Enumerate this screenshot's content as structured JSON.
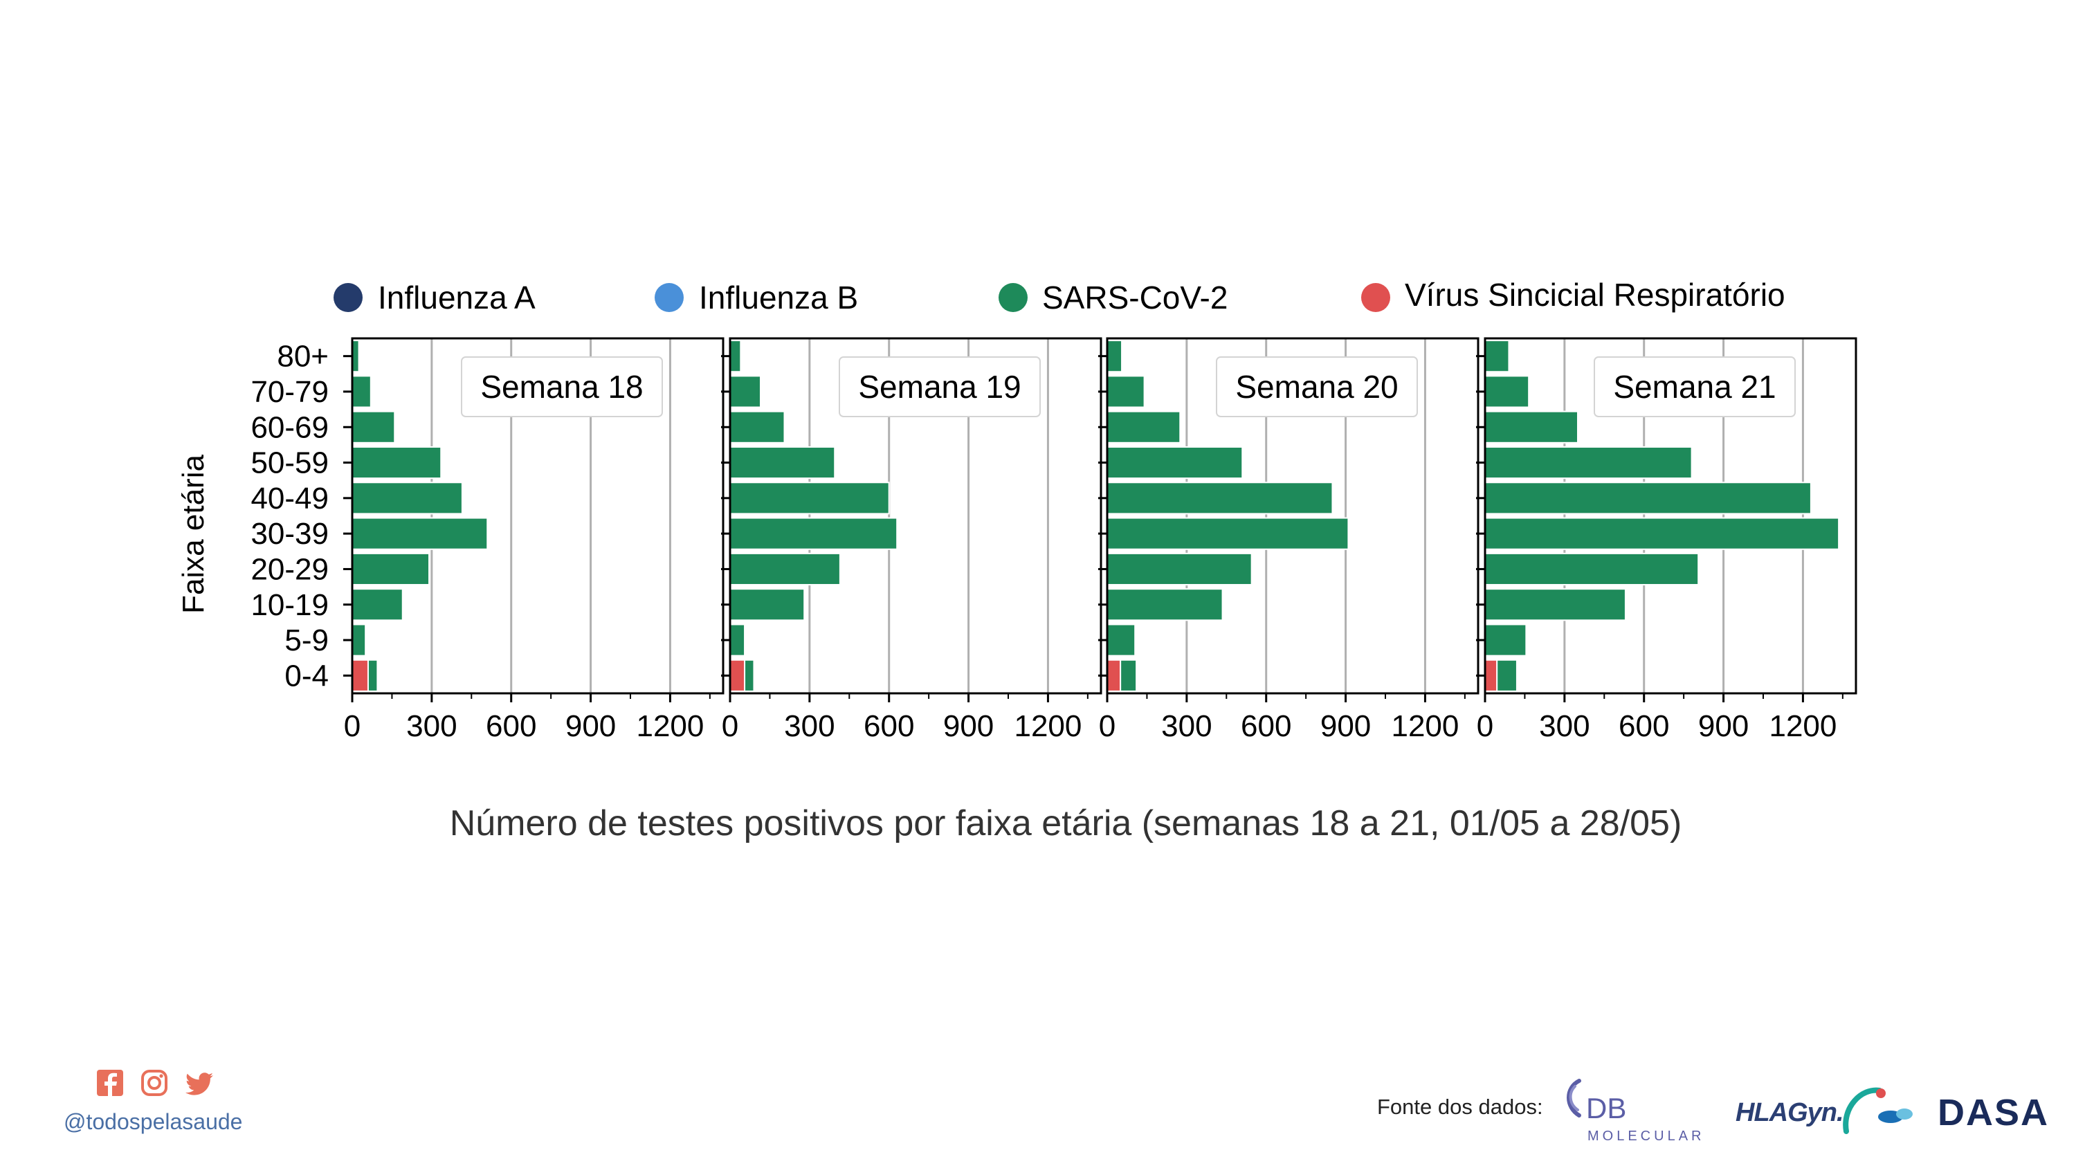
{
  "colors": {
    "influenza_a": "#243b6b",
    "influenza_b": "#4a90d9",
    "sars_cov_2": "#1e8a5a",
    "vsr": "#e05050",
    "social": "#e8705a",
    "handle": "#4a6fa5",
    "db_logo": "#5b5ea6",
    "dasa_logo": "#1a2b5a"
  },
  "legend": {
    "items": [
      {
        "label": "Influenza A",
        "color": "#243b6b"
      },
      {
        "label": "Influenza B",
        "color": "#4a90d9"
      },
      {
        "label": "SARS-CoV-2",
        "color": "#1e8a5a"
      },
      {
        "label": "Vírus Sincicial Respiratório",
        "color": "#e05050"
      }
    ]
  },
  "chart_data": {
    "type": "bar",
    "orientation": "horizontal",
    "stacked": true,
    "ylabel": "Faixa etária",
    "categories": [
      "0-4",
      "5-9",
      "10-19",
      "20-29",
      "30-39",
      "40-49",
      "50-59",
      "60-69",
      "70-79",
      "80+"
    ],
    "xlim": [
      0,
      1400
    ],
    "xticks": [
      "0",
      "300",
      "600",
      "900",
      "1200"
    ],
    "grid": "x",
    "panels": [
      {
        "title": "Semana 18",
        "series": [
          {
            "name": "Vírus Sincicial Respiratório",
            "values": [
              60,
              0,
              0,
              0,
              0,
              0,
              0,
              0,
              0,
              0
            ]
          },
          {
            "name": "SARS-CoV-2",
            "values": [
              35,
              50,
              190,
              290,
              510,
              415,
              335,
              160,
              70,
              25
            ]
          }
        ]
      },
      {
        "title": "Semana 19",
        "series": [
          {
            "name": "Vírus Sincicial Respiratório",
            "values": [
              55,
              0,
              0,
              0,
              0,
              0,
              0,
              0,
              0,
              0
            ]
          },
          {
            "name": "SARS-CoV-2",
            "values": [
              35,
              55,
              280,
              415,
              630,
              600,
              395,
              205,
              115,
              40
            ]
          }
        ]
      },
      {
        "title": "Semana 20",
        "series": [
          {
            "name": "Vírus Sincicial Respiratório",
            "values": [
              50,
              0,
              0,
              0,
              0,
              0,
              0,
              0,
              0,
              0
            ]
          },
          {
            "name": "SARS-CoV-2",
            "values": [
              60,
              105,
              435,
              545,
              910,
              850,
              510,
              275,
              140,
              55
            ]
          }
        ]
      },
      {
        "title": "Semana 21",
        "series": [
          {
            "name": "Vírus Sincicial Respiratório",
            "values": [
              45,
              0,
              0,
              0,
              0,
              0,
              0,
              0,
              0,
              0
            ]
          },
          {
            "name": "SARS-CoV-2",
            "values": [
              75,
              155,
              530,
              805,
              1335,
              1230,
              780,
              350,
              165,
              90
            ]
          }
        ]
      }
    ]
  },
  "caption": "Número de testes positivos por faixa etária (semanas 18 a 21, 01/05 a 28/05)",
  "footer": {
    "social_icons": [
      "facebook-icon",
      "instagram-icon",
      "twitter-icon"
    ],
    "handle": "@todospelasaude",
    "source_label": "Fonte dos dados:",
    "logos": [
      {
        "name": "db-molecular-logo",
        "text_main": "DB",
        "text_sub": "MOLECULAR"
      },
      {
        "name": "hlagyn-logo",
        "text_main": "HLAGyn."
      },
      {
        "name": "dasa-logo",
        "text_main": "DASA"
      }
    ]
  }
}
